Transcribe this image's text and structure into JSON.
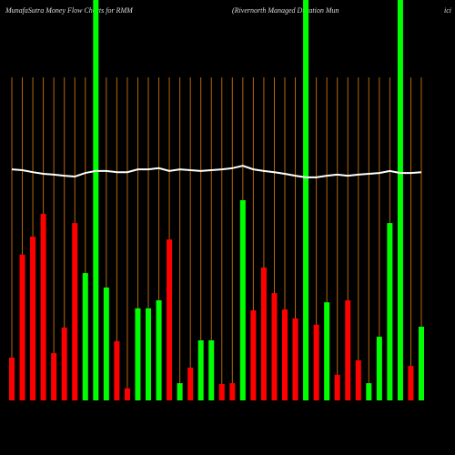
{
  "chart_data": {
    "type": "bar",
    "title": "MunafaSutra  Money Flow  Charts for RMM",
    "subtitle": "(Rivernorth Managed Duration  Mun",
    "subtitle_tail": "ici",
    "ylim": [
      0,
      100
    ],
    "values": [
      10.7,
      36.4,
      40.9,
      46.6,
      11.8,
      18.2,
      44.3,
      31.8,
      100,
      28.2,
      14.8,
      3,
      23,
      23,
      25,
      40.2,
      4.3,
      8.2,
      15,
      15,
      4.1,
      4.3,
      50,
      22.5,
      33.2,
      26.8,
      22.7,
      20.5,
      100,
      18.9,
      24.5,
      6.4,
      25,
      10,
      4.3,
      15.9,
      44.3,
      100,
      8.6,
      18.4
    ],
    "colors": [
      "#ff0000",
      "#ff0000",
      "#ff0000",
      "#ff0000",
      "#ff0000",
      "#ff0000",
      "#ff0000",
      "#00ff00",
      "#00ff00",
      "#00ff00",
      "#ff0000",
      "#ff0000",
      "#00ff00",
      "#00ff00",
      "#00ff00",
      "#ff0000",
      "#00ff00",
      "#ff0000",
      "#00ff00",
      "#00ff00",
      "#ff0000",
      "#ff0000",
      "#00ff00",
      "#ff0000",
      "#ff0000",
      "#ff0000",
      "#ff0000",
      "#ff0000",
      "#00ff00",
      "#ff0000",
      "#00ff00",
      "#ff0000",
      "#ff0000",
      "#ff0000",
      "#00ff00",
      "#00ff00",
      "#00ff00",
      "#00ff00",
      "#ff0000",
      "#00ff00"
    ],
    "line_values": [
      57.7,
      57.5,
      57.0,
      56.6,
      56.4,
      56.1,
      55.9,
      56.8,
      57.3,
      57.3,
      57.0,
      57.0,
      57.7,
      57.7,
      58.0,
      57.3,
      57.7,
      57.5,
      57.3,
      57.5,
      57.7,
      58.0,
      58.6,
      57.7,
      57.3,
      57.0,
      56.6,
      56.1,
      55.7,
      55.7,
      56.1,
      56.4,
      56.1,
      56.4,
      56.6,
      56.8,
      57.3,
      56.8,
      56.8,
      57.0
    ],
    "line_color": "#ffffff",
    "grid_color": "#b8660b"
  }
}
